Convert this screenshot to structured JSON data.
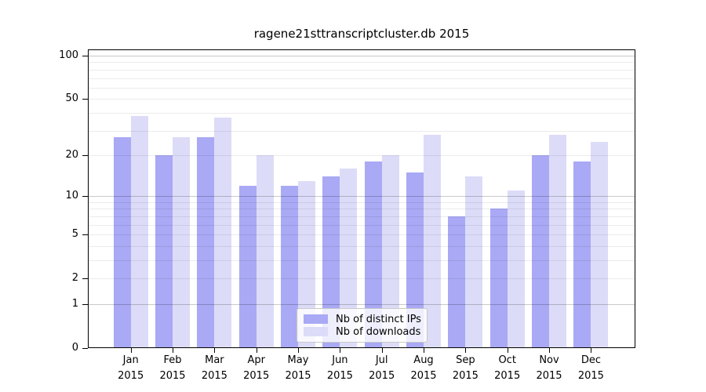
{
  "title": "ragene21sttranscriptcluster.db 2015",
  "chart_data": {
    "type": "bar",
    "title": "ragene21sttranscriptcluster.db 2015",
    "categories": [
      "Jan",
      "Feb",
      "Mar",
      "Apr",
      "May",
      "Jun",
      "Jul",
      "Aug",
      "Sep",
      "Oct",
      "Nov",
      "Dec"
    ],
    "year": "2015",
    "series": [
      {
        "name": "Nb of distinct IPs",
        "color": "#a9a9f5",
        "values": [
          27,
          20,
          27,
          12,
          12,
          14,
          18,
          15,
          7,
          8,
          20,
          18
        ]
      },
      {
        "name": "Nb of downloads",
        "color": "#dcdcf8",
        "values": [
          38,
          27,
          37,
          20,
          13,
          16,
          20,
          28,
          14,
          11,
          28,
          25
        ]
      }
    ],
    "xlabel": "",
    "ylabel": "",
    "yscale": "log1p",
    "ylim": [
      0,
      111
    ],
    "yticks": [
      0,
      1,
      2,
      5,
      10,
      20,
      50,
      100
    ],
    "minor_gridlines": [
      2,
      3,
      4,
      5,
      6,
      7,
      8,
      9,
      20,
      30,
      40,
      50,
      60,
      70,
      80,
      90
    ],
    "major_gridlines": [
      1,
      10,
      100
    ],
    "grid": true,
    "legend_position": "bottom-center",
    "colors": {
      "background": "#ffffff",
      "axis": "#000000",
      "grid_minor": "#ebebeb",
      "grid_major": "#c9c9c9"
    }
  }
}
